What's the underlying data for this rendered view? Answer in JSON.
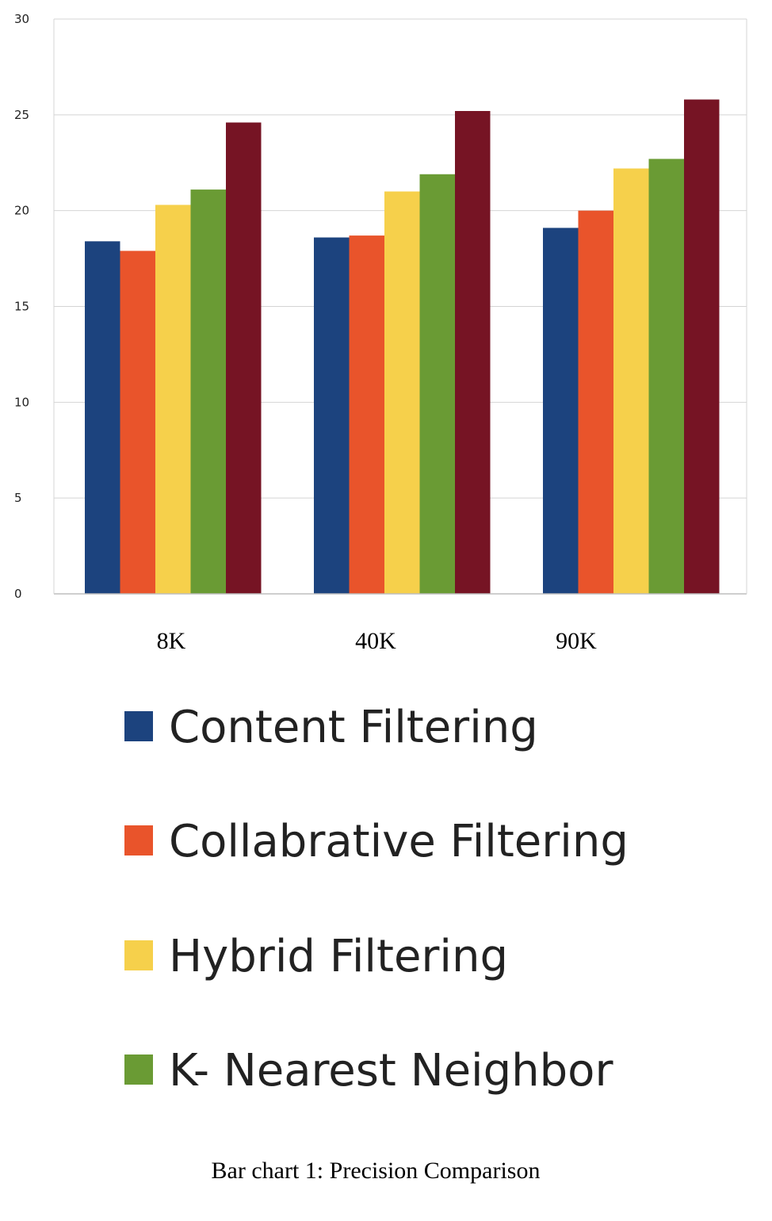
{
  "chart_data": {
    "type": "bar",
    "categories": [
      "8K",
      "40K",
      "90K"
    ],
    "series": [
      {
        "name": "Content Filtering",
        "color": "#1c437e",
        "values": [
          18.4,
          18.6,
          19.1
        ]
      },
      {
        "name": "Collabrative Filtering",
        "color": "#e9542b",
        "values": [
          17.9,
          18.7,
          20.0
        ]
      },
      {
        "name": "Hybrid Filtering",
        "color": "#f6d04b",
        "values": [
          20.3,
          21.0,
          22.2
        ]
      },
      {
        "name": "K- Nearest Neighbor",
        "color": "#6a9b34",
        "values": [
          21.1,
          21.9,
          22.7
        ]
      },
      {
        "name": "",
        "color": "#761424",
        "values": [
          24.6,
          25.2,
          25.8
        ]
      }
    ],
    "ylim": [
      0,
      30
    ],
    "yticks": [
      0,
      5,
      10,
      15,
      20,
      25,
      30
    ],
    "grid": true,
    "legend_position": "bottom",
    "title": "",
    "xlabel": "",
    "ylabel": ""
  },
  "caption": "Bar chart 1:  Precision Comparison"
}
